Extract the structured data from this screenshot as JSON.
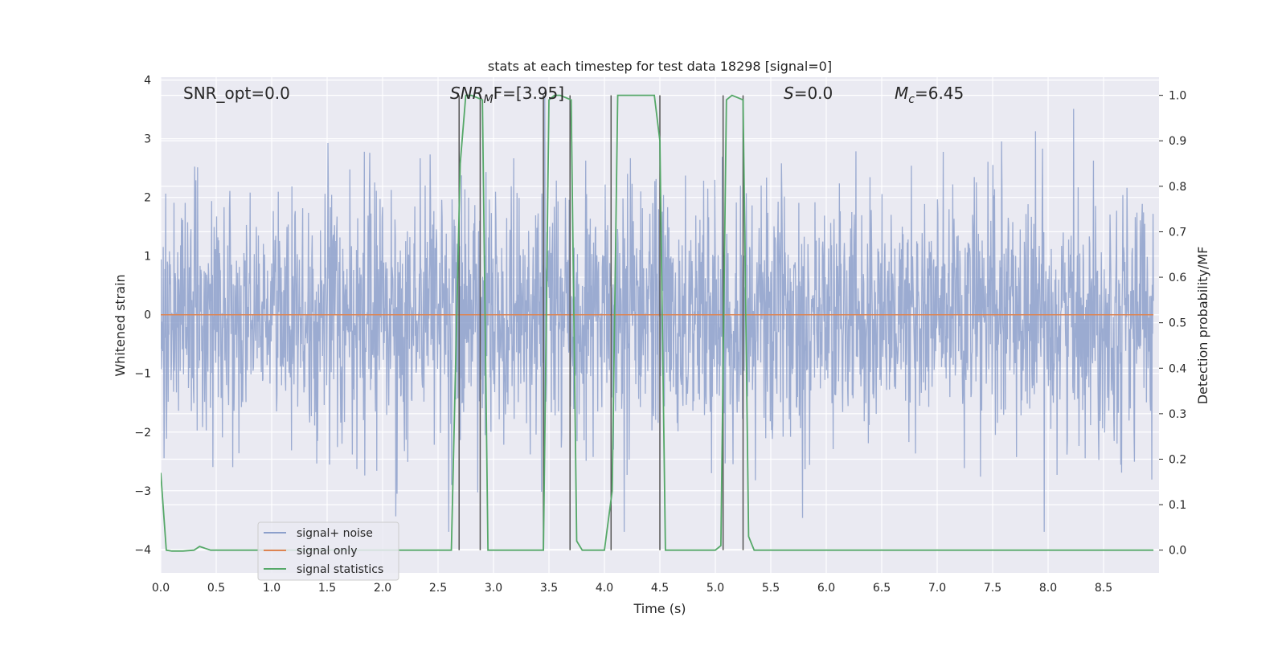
{
  "chart_data": {
    "type": "line",
    "title": "stats at each timestep for test data 18298 [signal=0]",
    "xlabel": "Time (s)",
    "ylabel": "Whitened strain",
    "ylabel_right": "Detection probability/MF",
    "xlim": [
      0.0,
      9.0
    ],
    "ylim": [
      -4.4,
      4.05
    ],
    "ylim_right": [
      -0.05,
      1.04
    ],
    "x_ticks": [
      "0.0",
      "0.5",
      "1.0",
      "1.5",
      "2.0",
      "2.5",
      "3.0",
      "3.5",
      "4.0",
      "4.5",
      "5.0",
      "5.5",
      "6.0",
      "6.5",
      "7.0",
      "7.5",
      "8.0",
      "8.5"
    ],
    "y_ticks": [
      "4",
      "3",
      "2",
      "1",
      "0",
      "−1",
      "−2",
      "−3",
      "−4"
    ],
    "y_right_ticks": [
      "1.0",
      "0.9",
      "0.8",
      "0.7",
      "0.6",
      "0.5",
      "0.4",
      "0.3",
      "0.2",
      "0.1",
      "0.0"
    ],
    "grid": true,
    "legend_position": "lower-left",
    "annotations": {
      "snr_opt": "SNR_opt=0.0",
      "snr_mf_base": "SNR",
      "snr_mf_sub": "M",
      "snr_mf_rest": "F=[3.95]",
      "s_italic": "S",
      "s_rest": "=0.0",
      "mc_base": "M",
      "mc_sub": "c",
      "mc_rest": "=6.45"
    },
    "series": [
      {
        "name": "signal+ noise",
        "color": "#8da0cb",
        "description_values": "dense whitened strain noise, mostly within [-2, 2] with spikes to about ±3.7"
      },
      {
        "name": "signal only",
        "color": "#dd8452",
        "constant": 0
      },
      {
        "name": "signal statistics",
        "color": "#55a868",
        "axis": "right",
        "x": [
          0.0,
          0.05,
          0.1,
          0.2,
          0.3,
          0.35,
          0.4,
          0.45,
          0.5,
          1.0,
          2.0,
          2.5,
          2.62,
          2.7,
          2.75,
          2.8,
          2.85,
          2.9,
          2.95,
          3.0,
          3.45,
          3.5,
          3.55,
          3.6,
          3.65,
          3.7,
          3.75,
          3.8,
          3.9,
          4.0,
          4.07,
          4.12,
          4.2,
          4.45,
          4.5,
          4.55,
          4.6,
          4.65,
          5.0,
          5.05,
          5.1,
          5.15,
          5.2,
          5.25,
          5.3,
          5.35,
          5.4,
          6.0,
          7.0,
          8.0,
          8.95
        ],
        "values": [
          0.17,
          0.0,
          -0.002,
          -0.002,
          0.0,
          0.008,
          0.004,
          0.0,
          0.0,
          0.0,
          0.0,
          0.0,
          0.0,
          0.85,
          1.0,
          1.0,
          0.995,
          0.99,
          0.0,
          0.0,
          0.0,
          0.99,
          1.0,
          1.0,
          0.995,
          0.99,
          0.02,
          0.0,
          0.0,
          0.0,
          0.13,
          1.0,
          1.0,
          1.0,
          0.9,
          0.0,
          0.0,
          0.0,
          0.0,
          0.01,
          0.99,
          1.0,
          0.995,
          0.99,
          0.03,
          0.0,
          0.0,
          0.0,
          0.0,
          0.0,
          0.0
        ]
      }
    ],
    "vertical_markers_x": [
      2.69,
      2.88,
      3.45,
      3.69,
      4.06,
      4.5,
      5.07,
      5.25
    ],
    "vertical_marker_color": "#555555"
  }
}
